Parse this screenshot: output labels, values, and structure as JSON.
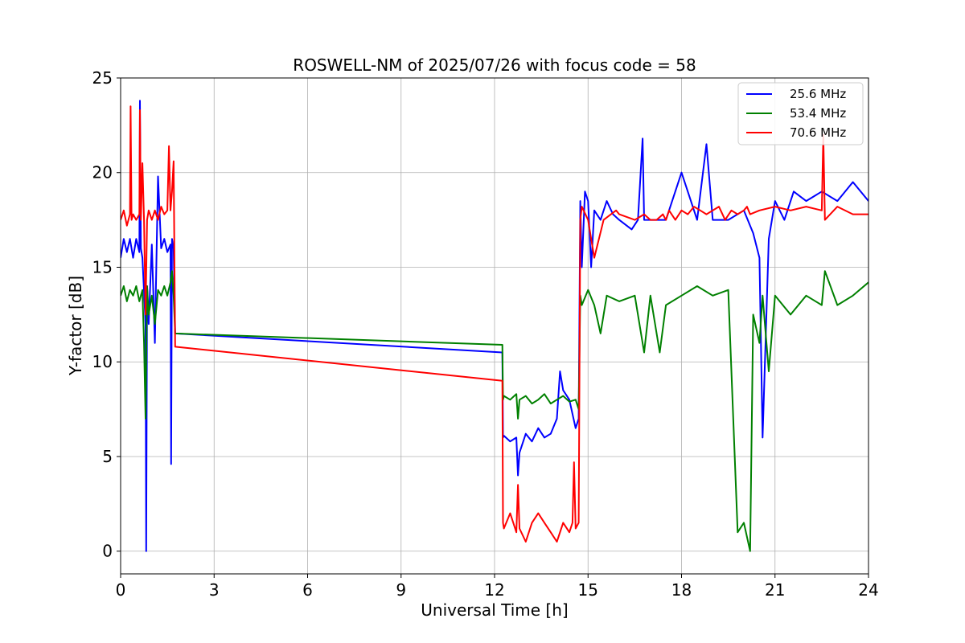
{
  "chart_data": {
    "type": "line",
    "title": "ROSWELL-NM of 2025/07/26 with focus code = 58",
    "xlabel": "Universal Time [h]",
    "ylabel": "Y-factor [dB]",
    "xlim": [
      0,
      24
    ],
    "ylim": [
      -1.2,
      25
    ],
    "xticks": [
      0,
      3,
      6,
      9,
      12,
      15,
      18,
      21,
      24
    ],
    "yticks": [
      0,
      5,
      10,
      15,
      20,
      25
    ],
    "grid": true,
    "legend_position": "top-right",
    "series": [
      {
        "name": "25.6 MHz",
        "color": "#0000ff",
        "x": [
          0.0,
          0.1,
          0.2,
          0.3,
          0.4,
          0.5,
          0.6,
          0.62,
          0.65,
          0.7,
          0.8,
          0.82,
          0.85,
          0.9,
          1.0,
          1.1,
          1.2,
          1.3,
          1.4,
          1.5,
          1.6,
          1.62,
          1.65,
          1.7,
          1.75,
          12.25,
          12.27,
          12.3,
          12.5,
          12.7,
          12.75,
          12.8,
          13.0,
          13.2,
          13.4,
          13.6,
          13.8,
          14.0,
          14.1,
          14.2,
          14.4,
          14.6,
          14.7,
          14.75,
          14.8,
          14.9,
          15.0,
          15.1,
          15.2,
          15.4,
          15.6,
          15.8,
          16.0,
          16.4,
          16.6,
          16.75,
          16.8,
          17.0,
          17.5,
          18.0,
          18.5,
          18.8,
          19.0,
          19.5,
          20.0,
          20.3,
          20.5,
          20.6,
          20.8,
          21.0,
          21.3,
          21.6,
          22.0,
          22.5,
          23.0,
          23.5,
          24.0
        ],
        "values": [
          15.5,
          16.5,
          15.8,
          16.5,
          15.5,
          16.5,
          15.8,
          23.8,
          16.0,
          15.5,
          12.0,
          0.0,
          14.0,
          12.0,
          16.2,
          11.0,
          19.8,
          16.0,
          16.5,
          15.8,
          16.2,
          4.6,
          16.5,
          16.0,
          11.5,
          10.5,
          6.0,
          6.1,
          5.8,
          6.0,
          4.0,
          5.2,
          6.2,
          5.8,
          6.5,
          6.0,
          6.2,
          7.0,
          9.5,
          8.5,
          8.0,
          6.5,
          7.0,
          18.5,
          15.0,
          19.0,
          18.5,
          15.0,
          18.0,
          17.5,
          18.5,
          17.8,
          17.5,
          17.0,
          17.5,
          21.8,
          17.5,
          17.5,
          17.5,
          20.0,
          17.5,
          21.5,
          17.5,
          17.5,
          18.0,
          16.8,
          15.5,
          6.0,
          16.5,
          18.5,
          17.5,
          19.0,
          18.5,
          19.0,
          18.5,
          19.5,
          18.5
        ]
      },
      {
        "name": "53.4 MHz",
        "color": "#008000",
        "x": [
          0.0,
          0.1,
          0.2,
          0.3,
          0.4,
          0.5,
          0.6,
          0.7,
          0.75,
          0.8,
          0.85,
          0.9,
          1.0,
          1.1,
          1.2,
          1.3,
          1.4,
          1.5,
          1.6,
          1.65,
          1.7,
          1.75,
          12.25,
          12.27,
          12.3,
          12.5,
          12.7,
          12.75,
          12.8,
          13.0,
          13.2,
          13.4,
          13.6,
          13.8,
          14.0,
          14.2,
          14.4,
          14.6,
          14.7,
          14.75,
          14.8,
          15.0,
          15.2,
          15.4,
          15.6,
          16.0,
          16.5,
          16.8,
          17.0,
          17.3,
          17.5,
          18.0,
          18.5,
          19.0,
          19.5,
          19.8,
          20.0,
          20.2,
          20.3,
          20.5,
          20.6,
          20.8,
          21.0,
          21.5,
          22.0,
          22.5,
          22.6,
          23.0,
          23.5,
          24.0
        ],
        "values": [
          13.5,
          14.0,
          13.2,
          13.8,
          13.5,
          14.0,
          13.2,
          13.8,
          11.0,
          7.0,
          14.0,
          12.5,
          13.5,
          12.0,
          13.8,
          13.5,
          14.0,
          13.5,
          14.2,
          14.8,
          13.5,
          11.5,
          10.9,
          8.0,
          8.2,
          8.0,
          8.3,
          7.0,
          8.0,
          8.2,
          7.8,
          8.0,
          8.3,
          7.8,
          8.0,
          8.2,
          7.9,
          8.0,
          7.5,
          13.5,
          13.0,
          13.8,
          13.0,
          11.5,
          13.5,
          13.2,
          13.5,
          10.5,
          13.5,
          10.5,
          13.0,
          13.5,
          14.0,
          13.5,
          13.8,
          1.0,
          1.5,
          0.0,
          12.5,
          11.0,
          13.5,
          9.5,
          13.5,
          12.5,
          13.5,
          13.0,
          14.8,
          13.0,
          13.5,
          14.2
        ]
      },
      {
        "name": "70.6 MHz",
        "color": "#ff0000",
        "x": [
          0.0,
          0.1,
          0.2,
          0.3,
          0.32,
          0.35,
          0.4,
          0.5,
          0.6,
          0.62,
          0.65,
          0.7,
          0.75,
          0.8,
          0.85,
          0.9,
          1.0,
          1.1,
          1.2,
          1.3,
          1.4,
          1.5,
          1.55,
          1.6,
          1.65,
          1.7,
          1.75,
          12.25,
          12.27,
          12.3,
          12.5,
          12.7,
          12.75,
          12.8,
          13.0,
          13.2,
          13.4,
          13.6,
          13.8,
          14.0,
          14.2,
          14.4,
          14.5,
          14.55,
          14.6,
          14.7,
          14.75,
          14.8,
          15.0,
          15.2,
          15.5,
          15.9,
          16.0,
          16.5,
          16.8,
          17.0,
          17.2,
          17.4,
          17.5,
          17.6,
          17.8,
          18.0,
          18.2,
          18.4,
          18.6,
          18.8,
          19.0,
          19.2,
          19.4,
          19.6,
          19.8,
          20.0,
          20.1,
          20.2,
          20.5,
          21.0,
          21.5,
          22.0,
          22.5,
          22.55,
          22.6,
          23.0,
          23.5,
          24.0
        ],
        "values": [
          17.5,
          18.0,
          17.2,
          17.8,
          23.5,
          17.5,
          17.8,
          17.5,
          17.8,
          23.3,
          17.5,
          20.5,
          17.5,
          12.5,
          17.5,
          18.0,
          17.5,
          18.0,
          17.5,
          18.2,
          17.8,
          18.0,
          21.4,
          18.0,
          19.0,
          20.6,
          10.8,
          9.0,
          1.5,
          1.2,
          2.0,
          1.0,
          3.5,
          1.2,
          0.5,
          1.5,
          2.0,
          1.5,
          1.0,
          0.5,
          1.5,
          1.0,
          1.5,
          4.7,
          1.2,
          1.5,
          17.5,
          18.2,
          17.5,
          15.5,
          17.5,
          18.0,
          17.8,
          17.5,
          17.8,
          17.5,
          17.5,
          17.8,
          17.5,
          18.0,
          17.5,
          18.0,
          17.8,
          18.2,
          18.0,
          17.8,
          18.0,
          18.2,
          17.5,
          18.0,
          17.8,
          18.0,
          18.2,
          17.8,
          18.0,
          18.2,
          18.0,
          18.2,
          18.0,
          22.0,
          17.5,
          18.2,
          17.8,
          17.8
        ]
      }
    ]
  }
}
